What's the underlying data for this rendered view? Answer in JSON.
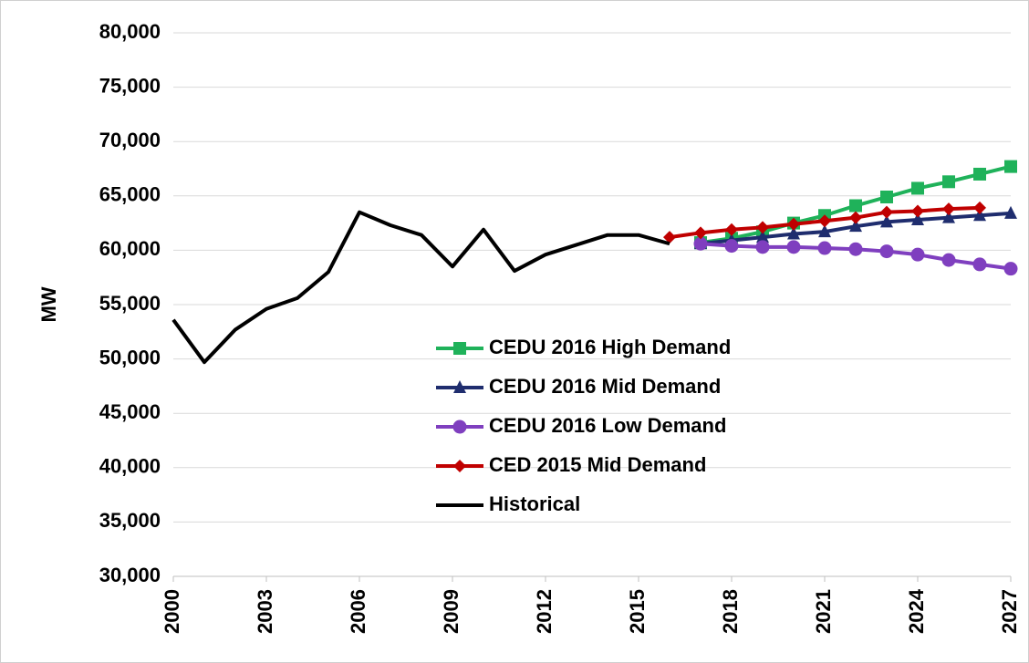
{
  "chart_data": {
    "type": "line",
    "ylabel": "MW",
    "x": [
      2000,
      2001,
      2002,
      2003,
      2004,
      2005,
      2006,
      2007,
      2008,
      2009,
      2010,
      2011,
      2012,
      2013,
      2014,
      2015,
      2016,
      2017,
      2018,
      2019,
      2020,
      2021,
      2022,
      2023,
      2024,
      2025,
      2026,
      2027
    ],
    "xlim": [
      2000,
      2027
    ],
    "xticks": [
      2000,
      2003,
      2006,
      2009,
      2012,
      2015,
      2018,
      2021,
      2024,
      2027
    ],
    "ylim": [
      30000,
      80000
    ],
    "yticks": [
      {
        "value": 30000,
        "label": "30,000"
      },
      {
        "value": 35000,
        "label": "35,000"
      },
      {
        "value": 40000,
        "label": "40,000"
      },
      {
        "value": 45000,
        "label": "45,000"
      },
      {
        "value": 50000,
        "label": "50,000"
      },
      {
        "value": 55000,
        "label": "55,000"
      },
      {
        "value": 60000,
        "label": "60,000"
      },
      {
        "value": 65000,
        "label": "65,000"
      },
      {
        "value": 70000,
        "label": "70,000"
      },
      {
        "value": 75000,
        "label": "75,000"
      },
      {
        "value": 80000,
        "label": "80,000"
      }
    ],
    "grid": true,
    "series": [
      {
        "name": "CEDU 2016 High Demand",
        "color": "#1fb25a",
        "marker": "square",
        "values": [
          null,
          null,
          null,
          null,
          null,
          null,
          null,
          null,
          null,
          null,
          null,
          null,
          null,
          null,
          null,
          null,
          null,
          60700,
          61100,
          61700,
          62500,
          63200,
          64100,
          64900,
          65700,
          66300,
          67000,
          67700
        ]
      },
      {
        "name": "CEDU 2016 Mid Demand",
        "color": "#1f2d6e",
        "marker": "triangle",
        "values": [
          null,
          null,
          null,
          null,
          null,
          null,
          null,
          null,
          null,
          null,
          null,
          null,
          null,
          null,
          null,
          null,
          null,
          60600,
          60900,
          61200,
          61500,
          61700,
          62200,
          62600,
          62800,
          63000,
          63200,
          63400
        ]
      },
      {
        "name": "CEDU 2016 Low Demand",
        "color": "#7f3fbf",
        "marker": "circle",
        "values": [
          null,
          null,
          null,
          null,
          null,
          null,
          null,
          null,
          null,
          null,
          null,
          null,
          null,
          null,
          null,
          null,
          null,
          60600,
          60400,
          60300,
          60300,
          60200,
          60100,
          59900,
          59600,
          59100,
          58700,
          58300
        ]
      },
      {
        "name": "CED 2015 Mid Demand",
        "color": "#c00000",
        "marker": "diamond",
        "values": [
          null,
          null,
          null,
          null,
          null,
          null,
          null,
          null,
          null,
          null,
          null,
          null,
          null,
          null,
          null,
          null,
          61200,
          61600,
          61900,
          62100,
          62400,
          62700,
          63000,
          63500,
          63600,
          63800,
          63900,
          null
        ]
      },
      {
        "name": "Historical",
        "color": "#000000",
        "marker": "none",
        "values": [
          53600,
          49700,
          52700,
          54600,
          55600,
          58000,
          63500,
          62300,
          61400,
          58500,
          61900,
          58100,
          59600,
          60500,
          61400,
          61400,
          60600,
          null,
          null,
          null,
          null,
          null,
          null,
          null,
          null,
          null,
          null,
          null
        ]
      }
    ]
  }
}
